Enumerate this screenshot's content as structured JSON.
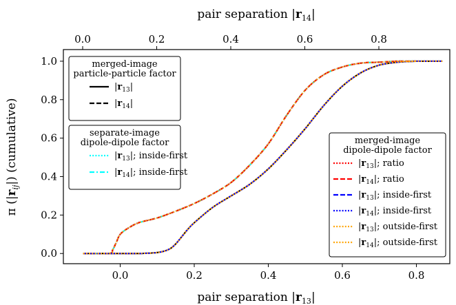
{
  "chart_data": {
    "type": "line",
    "title": "",
    "xlabel": "pair separation |r13|",
    "xlabel_top": "pair separation |r14|",
    "ylabel": "π(|rij|) (cumulative)",
    "xlim": [
      -0.1,
      0.88
    ],
    "ylim": [
      -0.04,
      1.05
    ],
    "x_ticks": [
      0.0,
      0.2,
      0.4,
      0.6,
      0.8
    ],
    "x_tick_labels": [
      "0.0",
      "0.2",
      "0.4",
      "0.6",
      "0.8"
    ],
    "y_ticks": [
      0.0,
      0.2,
      0.4,
      0.6,
      0.8,
      1.0
    ],
    "y_tick_labels": [
      "0.0",
      "0.2",
      "0.4",
      "0.6",
      "0.8",
      "1.0"
    ],
    "grid": false,
    "curves": {
      "r13": {
        "x": [
          -0.1,
          0.0,
          0.05,
          0.1,
          0.13,
          0.15,
          0.18,
          0.2,
          0.25,
          0.3,
          0.35,
          0.4,
          0.45,
          0.5,
          0.55,
          0.6,
          0.65,
          0.7,
          0.75,
          0.8,
          0.87
        ],
        "y": [
          0.0,
          0.0,
          0.0,
          0.005,
          0.02,
          0.05,
          0.12,
          0.16,
          0.24,
          0.3,
          0.36,
          0.44,
          0.54,
          0.65,
          0.77,
          0.87,
          0.94,
          0.98,
          0.995,
          1.0,
          1.0
        ]
      },
      "r14": {
        "x": [
          -0.1,
          -0.03,
          -0.02,
          -0.01,
          0.0,
          0.02,
          0.05,
          0.1,
          0.15,
          0.2,
          0.25,
          0.3,
          0.35,
          0.4,
          0.45,
          0.5,
          0.55,
          0.6,
          0.65,
          0.7,
          0.75,
          0.8
        ],
        "y": [
          0.0,
          0.0,
          0.02,
          0.06,
          0.1,
          0.13,
          0.16,
          0.185,
          0.22,
          0.26,
          0.31,
          0.37,
          0.46,
          0.57,
          0.72,
          0.85,
          0.93,
          0.97,
          0.99,
          0.995,
          1.0,
          1.0
        ]
      }
    },
    "series": [
      {
        "name": "|r13|",
        "group": "merged-image particle-particle factor",
        "curve": "r13",
        "color": "#000000",
        "style": "solid"
      },
      {
        "name": "|r14|",
        "group": "merged-image particle-particle factor",
        "curve": "r14",
        "color": "#000000",
        "style": "dashed"
      },
      {
        "name": "|r13|; inside-first",
        "group": "separate-image dipole-dipole factor",
        "curve": "r13",
        "color": "#00ffff",
        "style": "dotted"
      },
      {
        "name": "|r14|; inside-first",
        "group": "separate-image dipole-dipole factor",
        "curve": "r14",
        "color": "#00ffff",
        "style": "dashdot"
      },
      {
        "name": "|r13|; ratio",
        "group": "merged-image dipole-dipole factor",
        "curve": "r13",
        "color": "#ff0000",
        "style": "dotted"
      },
      {
        "name": "|r14|; ratio",
        "group": "merged-image dipole-dipole factor",
        "curve": "r14",
        "color": "#ff0000",
        "style": "dashed"
      },
      {
        "name": "|r13|; inside-first",
        "group": "merged-image dipole-dipole factor",
        "curve": "r13",
        "color": "#0000ff",
        "style": "dashed"
      },
      {
        "name": "|r14|; inside-first",
        "group": "merged-image dipole-dipole factor",
        "curve": "r14",
        "color": "#0000ff",
        "style": "dotted"
      },
      {
        "name": "|r13|; outside-first",
        "group": "merged-image dipole-dipole factor",
        "curve": "r13",
        "color": "#ffa500",
        "style": "dotted"
      },
      {
        "name": "|r14|; outside-first",
        "group": "merged-image dipole-dipole factor",
        "curve": "r14",
        "color": "#ffa500",
        "style": "dotted"
      }
    ],
    "legends": [
      {
        "title": [
          "merged-image",
          "particle-particle factor"
        ],
        "placement": "top-left",
        "entries": [
          0,
          1
        ]
      },
      {
        "title": [
          "separate-image",
          "dipole-dipole factor"
        ],
        "placement": "center-left",
        "entries": [
          2,
          3
        ]
      },
      {
        "title": [
          "merged-image",
          "dipole-dipole factor"
        ],
        "placement": "bottom-right",
        "entries": [
          4,
          5,
          6,
          7,
          8,
          9
        ]
      }
    ]
  }
}
